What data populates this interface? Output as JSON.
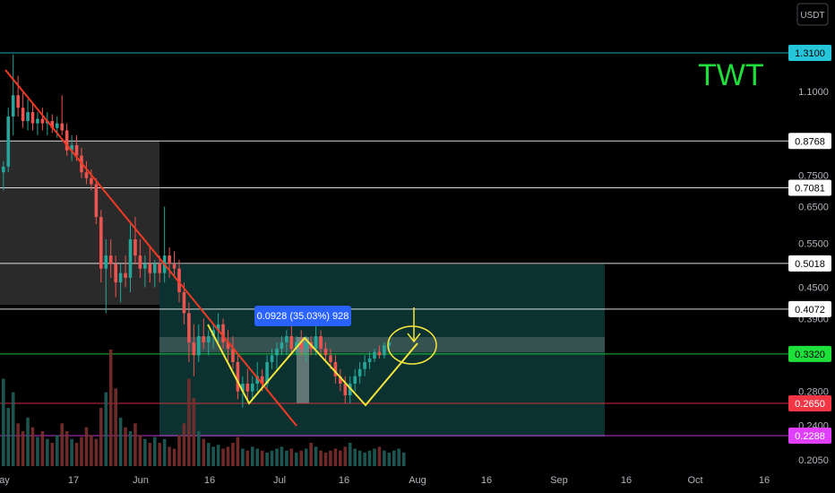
{
  "symbol": "TWT",
  "currency": "USDT",
  "measurement_label": "0.0928 (35.03%) 928",
  "chart_data": {
    "type": "candlestick",
    "y_axis": {
      "labels": [
        "1.1000",
        "0.7500",
        "0.6500",
        "0.5500",
        "0.4500",
        "0.3900",
        "0.2800",
        "0.2400",
        "0.2050"
      ],
      "values": [
        1.1,
        0.75,
        0.65,
        0.55,
        0.45,
        0.39,
        0.28,
        0.24,
        0.205
      ],
      "scale": "log",
      "range": [
        0.2,
        1.6
      ]
    },
    "x_axis": {
      "labels": [
        "ay",
        "17",
        "Jun",
        "16",
        "Jul",
        "16",
        "Aug",
        "16",
        "Sep",
        "16",
        "Oct",
        "16"
      ]
    },
    "horizontal_levels": [
      {
        "label": "1.3100",
        "value": 1.31,
        "color": "#26c6da",
        "text_color": "#000000"
      },
      {
        "label": "0.8768",
        "value": 0.8768,
        "color": "#ffffff",
        "text_color": "#000000"
      },
      {
        "label": "0.7081",
        "value": 0.7081,
        "color": "#ffffff",
        "text_color": "#000000"
      },
      {
        "label": "0.5018",
        "value": 0.5018,
        "color": "#ffffff",
        "text_color": "#000000"
      },
      {
        "label": "0.4072",
        "value": 0.4072,
        "color": "#ffffff",
        "text_color": "#000000"
      },
      {
        "label": "0.3320",
        "value": 0.332,
        "color": "#1fe03a",
        "text_color": "#000000"
      },
      {
        "label": "0.2650",
        "value": 0.265,
        "color": "#f23645",
        "text_color": "#ffffff"
      },
      {
        "label": "0.2288",
        "value": 0.2288,
        "color": "#e040fb",
        "text_color": "#ffffff"
      }
    ],
    "ohlc": [
      {
        "o": 0.76,
        "h": 0.8,
        "l": 0.7,
        "c": 0.78
      },
      {
        "o": 0.78,
        "h": 1.02,
        "l": 0.76,
        "c": 0.98
      },
      {
        "o": 0.98,
        "h": 1.3,
        "l": 0.9,
        "c": 1.08
      },
      {
        "o": 1.08,
        "h": 1.18,
        "l": 0.98,
        "c": 1.02
      },
      {
        "o": 1.02,
        "h": 1.1,
        "l": 0.93,
        "c": 0.96
      },
      {
        "o": 0.96,
        "h": 1.06,
        "l": 0.92,
        "c": 1.0
      },
      {
        "o": 1.0,
        "h": 1.04,
        "l": 0.92,
        "c": 0.95
      },
      {
        "o": 0.95,
        "h": 1.0,
        "l": 0.9,
        "c": 0.97
      },
      {
        "o": 0.97,
        "h": 1.02,
        "l": 0.92,
        "c": 0.95
      },
      {
        "o": 0.95,
        "h": 1.0,
        "l": 0.9,
        "c": 0.96
      },
      {
        "o": 0.96,
        "h": 0.99,
        "l": 0.91,
        "c": 0.93
      },
      {
        "o": 0.93,
        "h": 0.98,
        "l": 0.89,
        "c": 0.95
      },
      {
        "o": 0.95,
        "h": 1.08,
        "l": 0.9,
        "c": 0.92
      },
      {
        "o": 0.92,
        "h": 0.95,
        "l": 0.82,
        "c": 0.84
      },
      {
        "o": 0.84,
        "h": 0.9,
        "l": 0.8,
        "c": 0.86
      },
      {
        "o": 0.86,
        "h": 0.9,
        "l": 0.8,
        "c": 0.82
      },
      {
        "o": 0.82,
        "h": 0.85,
        "l": 0.74,
        "c": 0.76
      },
      {
        "o": 0.76,
        "h": 0.8,
        "l": 0.72,
        "c": 0.74
      },
      {
        "o": 0.74,
        "h": 0.77,
        "l": 0.7,
        "c": 0.72
      },
      {
        "o": 0.72,
        "h": 0.74,
        "l": 0.6,
        "c": 0.62
      },
      {
        "o": 0.62,
        "h": 0.64,
        "l": 0.46,
        "c": 0.49
      },
      {
        "o": 0.49,
        "h": 0.56,
        "l": 0.4,
        "c": 0.52
      },
      {
        "o": 0.52,
        "h": 0.56,
        "l": 0.47,
        "c": 0.5
      },
      {
        "o": 0.5,
        "h": 0.52,
        "l": 0.43,
        "c": 0.46
      },
      {
        "o": 0.46,
        "h": 0.5,
        "l": 0.42,
        "c": 0.48
      },
      {
        "o": 0.48,
        "h": 0.52,
        "l": 0.45,
        "c": 0.47
      },
      {
        "o": 0.47,
        "h": 0.6,
        "l": 0.44,
        "c": 0.56
      },
      {
        "o": 0.56,
        "h": 0.62,
        "l": 0.5,
        "c": 0.52
      },
      {
        "o": 0.52,
        "h": 0.56,
        "l": 0.47,
        "c": 0.49
      },
      {
        "o": 0.49,
        "h": 0.52,
        "l": 0.45,
        "c": 0.5
      },
      {
        "o": 0.5,
        "h": 0.54,
        "l": 0.46,
        "c": 0.48
      },
      {
        "o": 0.48,
        "h": 0.51,
        "l": 0.45,
        "c": 0.5
      },
      {
        "o": 0.5,
        "h": 0.52,
        "l": 0.46,
        "c": 0.48
      },
      {
        "o": 0.48,
        "h": 0.65,
        "l": 0.46,
        "c": 0.52
      },
      {
        "o": 0.52,
        "h": 0.54,
        "l": 0.47,
        "c": 0.5
      },
      {
        "o": 0.5,
        "h": 0.53,
        "l": 0.47,
        "c": 0.49
      },
      {
        "o": 0.49,
        "h": 0.51,
        "l": 0.42,
        "c": 0.44
      },
      {
        "o": 0.44,
        "h": 0.46,
        "l": 0.38,
        "c": 0.4
      },
      {
        "o": 0.4,
        "h": 0.42,
        "l": 0.32,
        "c": 0.35
      },
      {
        "o": 0.35,
        "h": 0.38,
        "l": 0.3,
        "c": 0.33
      },
      {
        "o": 0.33,
        "h": 0.38,
        "l": 0.32,
        "c": 0.36
      },
      {
        "o": 0.36,
        "h": 0.39,
        "l": 0.34,
        "c": 0.35
      },
      {
        "o": 0.35,
        "h": 0.37,
        "l": 0.33,
        "c": 0.36
      },
      {
        "o": 0.36,
        "h": 0.38,
        "l": 0.34,
        "c": 0.37
      },
      {
        "o": 0.37,
        "h": 0.4,
        "l": 0.35,
        "c": 0.38
      },
      {
        "o": 0.38,
        "h": 0.39,
        "l": 0.34,
        "c": 0.35
      },
      {
        "o": 0.35,
        "h": 0.37,
        "l": 0.32,
        "c": 0.34
      },
      {
        "o": 0.34,
        "h": 0.36,
        "l": 0.31,
        "c": 0.32
      },
      {
        "o": 0.32,
        "h": 0.33,
        "l": 0.27,
        "c": 0.28
      },
      {
        "o": 0.28,
        "h": 0.3,
        "l": 0.26,
        "c": 0.29
      },
      {
        "o": 0.29,
        "h": 0.31,
        "l": 0.27,
        "c": 0.28
      },
      {
        "o": 0.28,
        "h": 0.3,
        "l": 0.27,
        "c": 0.29
      },
      {
        "o": 0.29,
        "h": 0.32,
        "l": 0.28,
        "c": 0.3
      },
      {
        "o": 0.3,
        "h": 0.31,
        "l": 0.28,
        "c": 0.29
      },
      {
        "o": 0.29,
        "h": 0.33,
        "l": 0.28,
        "c": 0.32
      },
      {
        "o": 0.32,
        "h": 0.34,
        "l": 0.31,
        "c": 0.33
      },
      {
        "o": 0.33,
        "h": 0.35,
        "l": 0.31,
        "c": 0.34
      },
      {
        "o": 0.34,
        "h": 0.36,
        "l": 0.33,
        "c": 0.35
      },
      {
        "o": 0.35,
        "h": 0.37,
        "l": 0.33,
        "c": 0.36
      },
      {
        "o": 0.36,
        "h": 0.38,
        "l": 0.33,
        "c": 0.34
      },
      {
        "o": 0.34,
        "h": 0.36,
        "l": 0.33,
        "c": 0.35
      },
      {
        "o": 0.35,
        "h": 0.37,
        "l": 0.33,
        "c": 0.34
      },
      {
        "o": 0.34,
        "h": 0.36,
        "l": 0.32,
        "c": 0.35
      },
      {
        "o": 0.35,
        "h": 0.36,
        "l": 0.33,
        "c": 0.34
      },
      {
        "o": 0.34,
        "h": 0.38,
        "l": 0.33,
        "c": 0.36
      },
      {
        "o": 0.36,
        "h": 0.37,
        "l": 0.33,
        "c": 0.34
      },
      {
        "o": 0.34,
        "h": 0.35,
        "l": 0.32,
        "c": 0.33
      },
      {
        "o": 0.33,
        "h": 0.34,
        "l": 0.31,
        "c": 0.32
      },
      {
        "o": 0.32,
        "h": 0.33,
        "l": 0.29,
        "c": 0.3
      },
      {
        "o": 0.3,
        "h": 0.31,
        "l": 0.28,
        "c": 0.29
      },
      {
        "o": 0.29,
        "h": 0.3,
        "l": 0.265,
        "c": 0.275
      },
      {
        "o": 0.275,
        "h": 0.3,
        "l": 0.265,
        "c": 0.29
      },
      {
        "o": 0.29,
        "h": 0.31,
        "l": 0.28,
        "c": 0.3
      },
      {
        "o": 0.3,
        "h": 0.32,
        "l": 0.29,
        "c": 0.31
      },
      {
        "o": 0.31,
        "h": 0.33,
        "l": 0.3,
        "c": 0.32
      },
      {
        "o": 0.32,
        "h": 0.335,
        "l": 0.31,
        "c": 0.325
      },
      {
        "o": 0.325,
        "h": 0.34,
        "l": 0.32,
        "c": 0.335
      },
      {
        "o": 0.335,
        "h": 0.345,
        "l": 0.325,
        "c": 0.33
      },
      {
        "o": 0.33,
        "h": 0.35,
        "l": 0.325,
        "c": 0.345
      },
      {
        "o": 0.345,
        "h": 0.355,
        "l": 0.335,
        "c": 0.35
      }
    ],
    "volume": [
      45,
      30,
      38,
      22,
      18,
      25,
      20,
      15,
      18,
      14,
      12,
      16,
      22,
      18,
      14,
      12,
      15,
      20,
      16,
      14,
      30,
      38,
      60,
      40,
      25,
      20,
      18,
      22,
      16,
      14,
      12,
      15,
      12,
      14,
      10,
      9,
      16,
      22,
      45,
      35,
      18,
      14,
      12,
      10,
      11,
      9,
      10,
      12,
      15,
      9,
      8,
      10,
      9,
      8,
      7,
      8,
      9,
      10,
      8,
      9,
      7,
      8,
      9,
      12,
      10,
      8,
      7,
      8,
      9,
      8,
      10,
      12,
      9,
      8,
      7,
      8,
      9,
      10,
      8,
      7,
      8,
      9,
      7
    ]
  }
}
